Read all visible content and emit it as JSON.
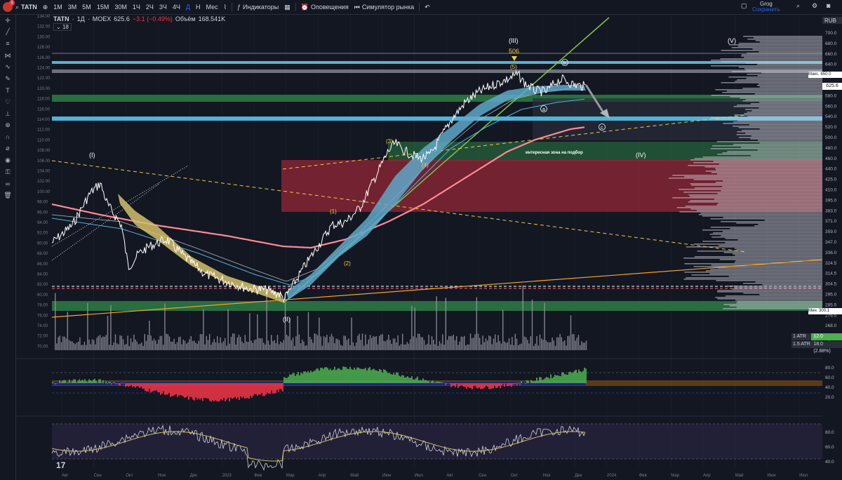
{
  "topbar": {
    "symbol": "TATN",
    "timeframes": [
      "1M",
      "3M",
      "5M",
      "15M",
      "30M",
      "1Ч",
      "2Ч",
      "3Ч",
      "4Ч",
      "Д",
      "Н",
      "Мес"
    ],
    "active_timeframe": "Д",
    "indicators_label": "Индикаторы",
    "alerts_label": "Оповещения",
    "replay_label": "Симулятор рынка",
    "user_name": "Grog",
    "save_label": "Сохранить",
    "notification_count": "1"
  },
  "legend": {
    "symbol": "TATN",
    "interval": "1Д",
    "exchange": "MOEX",
    "price": "625.6",
    "change": "−3.1 (−0.49%)",
    "volume_label": "Объём",
    "volume_value": "168.541K",
    "second_row": "18"
  },
  "currency": "RUB",
  "price_axis": {
    "ticks": [
      "700.0",
      "680.0",
      "660.0",
      "640.0",
      "620.0",
      "600.0",
      "580.0",
      "560.0",
      "540.0",
      "520.0",
      "500.0",
      "480.0",
      "460.0",
      "440.0",
      "425.0",
      "410.0",
      "395.0",
      "383.0",
      "371.0",
      "359.0",
      "347.0",
      "336.0",
      "324.5",
      "314.5",
      "304.5",
      "295.0",
      "285.5",
      "276.5",
      "268.0"
    ],
    "max_label": "Макс.",
    "max_value": "650.0",
    "current_value": "625.6",
    "min_label": "Мин.",
    "min_value": "300.1"
  },
  "left_axis": {
    "ticks": [
      "134.00",
      "132.00",
      "130.00",
      "128.00",
      "126.00",
      "124.00",
      "122.00",
      "120.00",
      "118.00",
      "116.00",
      "114.00",
      "112.00",
      "110.00",
      "108.00",
      "106.00",
      "104.00",
      "102.00",
      "100.00",
      "98.00",
      "96.00",
      "94.00",
      "92.00",
      "90.00",
      "88.00",
      "86.00",
      "84.00",
      "82.00",
      "80.00",
      "78.00",
      "76.00",
      "74.00",
      "72.00",
      "70.00"
    ]
  },
  "time_axis": {
    "labels": [
      "Авг",
      "Сен",
      "Окт",
      "Ноя",
      "Дек",
      "2023",
      "Фев",
      "Мар",
      "Апр",
      "Май",
      "Июн",
      "Июл",
      "Авг",
      "Сен",
      "Окт",
      "Ноя",
      "Дек",
      "2024",
      "Фев",
      "Мар",
      "Апр",
      "Май",
      "Июн",
      "Июл"
    ]
  },
  "osc_axis_1": [
    "80.0",
    "60.0",
    "40.0",
    "20.0"
  ],
  "osc_axis_2": [
    "80.0",
    "60.0",
    "40.0"
  ],
  "wave_labels": {
    "I": "(I)",
    "II": "(II)",
    "III": "(III)",
    "IV": "(IV)",
    "V": "(V)",
    "w1": "(1)",
    "w2": "(2)",
    "w3": "(3)",
    "w4": "(4)",
    "w5": "(5)",
    "a": "a",
    "b": "b",
    "c": "c",
    "top_value": "506"
  },
  "zone_label": "интересная зона на подбор",
  "atr": {
    "row1_label": "1 ATR",
    "row1_value": "12.0 (1.92%)",
    "row2_label": "1.5 ATR",
    "row2_value": "18.0 (2.88%)"
  },
  "colors": {
    "background": "#131722",
    "green_zone": "#2e7d45",
    "blue_level": "#4fb3d9",
    "red_zone": "#8b2635",
    "bull": "#4caf50",
    "bear": "#f23645",
    "ema_pink": "#ff6b81",
    "trend_green": "#7cc644",
    "trend_orange": "#f5a623"
  }
}
